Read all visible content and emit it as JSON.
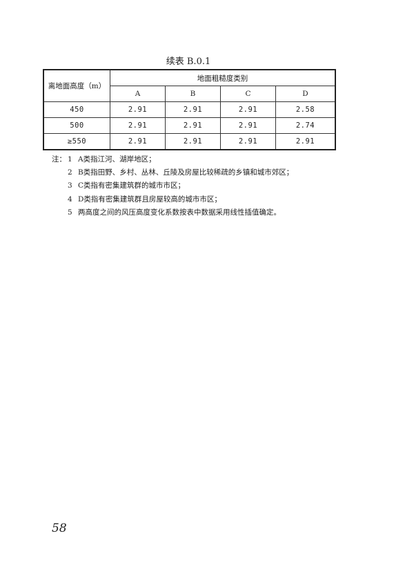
{
  "caption": "续表 B.0.1",
  "table": {
    "row_header": "离地面高度（m）",
    "group_header": "地面粗糙度类别",
    "columns": [
      "A",
      "B",
      "C",
      "D"
    ],
    "rows": [
      {
        "height": "450",
        "values": [
          "2.91",
          "2.91",
          "2.91",
          "2.58"
        ]
      },
      {
        "height": "500",
        "values": [
          "2.91",
          "2.91",
          "2.91",
          "2.74"
        ]
      },
      {
        "height": "≥550",
        "values": [
          "2.91",
          "2.91",
          "2.91",
          "2.91"
        ]
      }
    ]
  },
  "notes": {
    "label": "注：",
    "items": [
      {
        "n": "1",
        "text": "A类指江河、湖岸地区；"
      },
      {
        "n": "2",
        "text": "B类指田野、乡村、丛林、丘陵及房屋比较稀疏的乡镇和城市郊区；"
      },
      {
        "n": "3",
        "text": "C类指有密集建筑群的城市市区；"
      },
      {
        "n": "4",
        "text": "D类指有密集建筑群且房屋较高的城市市区；"
      },
      {
        "n": "5",
        "text": "两高度之间的风压高度变化系数按表中数据采用线性插值确定。"
      }
    ]
  },
  "page_number": "58"
}
